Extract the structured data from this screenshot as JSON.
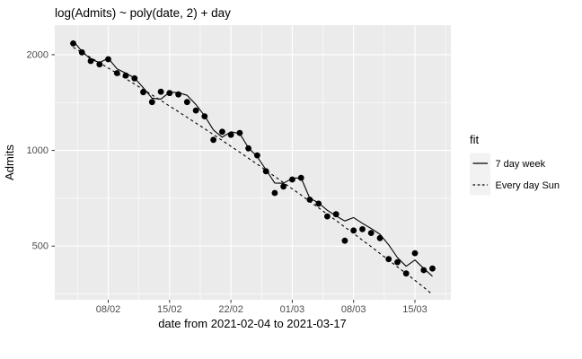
{
  "chart_data": {
    "type": "scatter+line",
    "title": "log(Admits) ~ poly(date, 2) + day",
    "xlabel": "date from 2021-02-04 to 2021-03-17",
    "ylabel": "Admits",
    "y_scale": "log10",
    "x_start_date": "2021-02-04",
    "x_end_date": "2021-03-17",
    "cadence": "daily",
    "x_ticks": [
      {
        "label": "08/02",
        "day": 4
      },
      {
        "label": "15/02",
        "day": 11
      },
      {
        "label": "22/02",
        "day": 18
      },
      {
        "label": "01/03",
        "day": 25
      },
      {
        "label": "08/03",
        "day": 32
      },
      {
        "label": "15/03",
        "day": 39
      }
    ],
    "x_minor_days": [
      0.5,
      7.5,
      14.5,
      21.5,
      28.5,
      35.5,
      42.5
    ],
    "y_ticks": [
      {
        "label": "2000",
        "value": 2000
      },
      {
        "label": "1000",
        "value": 1000
      },
      {
        "label": "500",
        "value": 500
      }
    ],
    "y_minor_values": [
      1414.2,
      707.1,
      353.6
    ],
    "x_range_days": [
      -2.1,
      43.1
    ],
    "y_range": [
      339,
      2478
    ],
    "grid": true,
    "legend": {
      "title": "fit",
      "position": "right"
    },
    "points": {
      "name": "Admits",
      "values": [
        2170,
        2035,
        1910,
        1865,
        1935,
        1750,
        1720,
        1685,
        1525,
        1420,
        1530,
        1515,
        1500,
        1420,
        1335,
        1280,
        1080,
        1145,
        1120,
        1135,
        1015,
        965,
        860,
        735,
        770,
        810,
        820,
        700,
        680,
        620,
        630,
        520,
        560,
        565,
        550,
        530,
        455,
        445,
        410,
        475,
        420,
        425
      ]
    },
    "series": [
      {
        "name": "7 day week",
        "linestyle": "solid",
        "values": [
          2210,
          2050,
          1935,
          1890,
          1950,
          1805,
          1750,
          1690,
          1575,
          1460,
          1450,
          1525,
          1520,
          1490,
          1395,
          1285,
          1160,
          1100,
          1145,
          1130,
          1020,
          955,
          870,
          790,
          788,
          817,
          820,
          707,
          684,
          648,
          622,
          600,
          615,
          590,
          568,
          545,
          505,
          460,
          432,
          452,
          425,
          402
        ]
      },
      {
        "name": "Every day Sun",
        "linestyle": "dashed",
        "values": [
          2110,
          2034,
          1959,
          1886,
          1816,
          1748,
          1682,
          1617,
          1555,
          1494,
          1436,
          1379,
          1324,
          1271,
          1219,
          1170,
          1122,
          1075,
          1030,
          987,
          945,
          905,
          866,
          828,
          792,
          757,
          724,
          691,
          660,
          630,
          602,
          574,
          548,
          522,
          498,
          474,
          452,
          430,
          410,
          390,
          371,
          352
        ]
      }
    ],
    "colors": {
      "figure_background": "#FFFFFF",
      "panel_background": "#EBEBEB",
      "grid": "#FFFFFF",
      "points": "#000000",
      "lines": "#000000",
      "axis_text": "#4D4D4D",
      "tick_marks": "#333333",
      "legend_key_background": "#F2F2F2",
      "text": "#000000"
    }
  }
}
